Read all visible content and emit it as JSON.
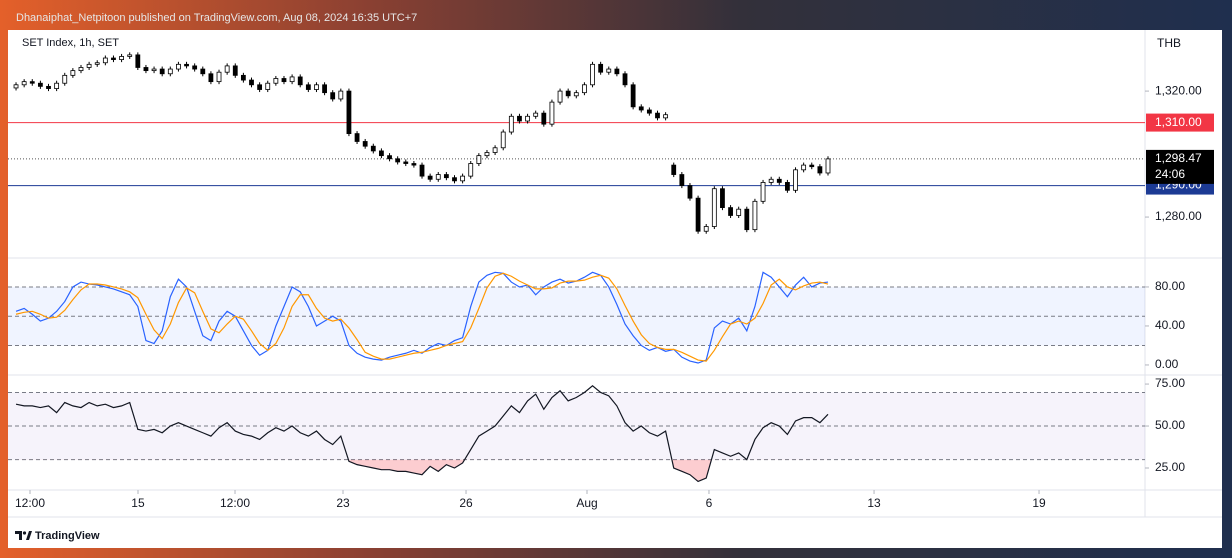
{
  "header": "Dhanaiphat_Netpitoon published on TradingView.com, Aug 08, 2024 16:35 UTC+7",
  "footer": "TradingView",
  "chart_data": [
    {
      "type": "candlestick",
      "title": "SET Index, 1h, SET",
      "currency": "THB",
      "x": [
        0,
        1,
        2,
        3,
        4,
        5,
        6,
        7,
        8,
        9,
        10,
        11,
        12,
        13,
        14,
        15,
        16,
        17,
        18,
        19,
        20,
        21,
        22,
        23,
        24,
        25,
        26,
        27,
        28,
        29,
        30,
        31,
        32,
        33,
        34,
        35,
        36,
        37,
        38,
        39,
        40,
        41,
        42,
        43,
        44,
        45,
        46,
        47,
        48,
        49,
        50,
        51,
        52,
        53,
        54,
        55,
        56,
        57,
        58,
        59,
        60,
        61,
        62,
        63,
        64,
        65,
        66,
        67,
        68,
        69,
        70,
        71,
        72,
        73,
        74,
        75,
        76,
        77,
        78,
        79,
        80,
        81,
        82,
        83,
        84,
        85,
        86,
        87,
        88,
        89,
        90,
        91,
        92,
        93,
        94,
        95,
        96,
        97,
        98,
        99,
        100
      ],
      "open": [
        1321,
        1322,
        1323,
        1322.5,
        1321.5,
        1320.8,
        1322.5,
        1325,
        1326.5,
        1327.5,
        1328.5,
        1329,
        1330.5,
        1330,
        1331,
        1331.5,
        1327.5,
        1326.5,
        1327,
        1325.5,
        1327,
        1328.5,
        1328,
        1327,
        1325.5,
        1323,
        1326,
        1328,
        1325,
        1323.5,
        1322,
        1320.5,
        1322.5,
        1324,
        1323,
        1324.5,
        1322,
        1320.5,
        1322,
        1319.5,
        1317.5,
        1320,
        1306.5,
        1304,
        1302.5,
        1301,
        1299.5,
        1298.5,
        1297.5,
        1297,
        1296.5,
        1293,
        1292,
        1293.5,
        1292.5,
        1291.5,
        1293,
        1297,
        1299.5,
        1300.5,
        1302,
        1307,
        1312,
        1310.5,
        1312,
        1313,
        1309.5,
        1316.5,
        1320,
        1318.5,
        1319.5,
        1322,
        1328.5,
        1326,
        1327,
        1325.5,
        1322,
        1315,
        1314,
        1313,
        1311.5,
        1296.5,
        1293.5,
        1290,
        1286,
        1275.5,
        1277,
        1289,
        1283,
        1280.5,
        1282.5,
        1276,
        1285,
        1291,
        1292,
        1291,
        1288.5,
        1295,
        1296.5,
        1296,
        1294
      ],
      "high": [
        1322.8,
        1323.8,
        1323.8,
        1323.3,
        1322.3,
        1323.3,
        1325.8,
        1327.3,
        1328.3,
        1329.3,
        1329.8,
        1331.3,
        1331.3,
        1331.8,
        1332.3,
        1332.3,
        1328.3,
        1327.8,
        1327.8,
        1327.8,
        1329.3,
        1329.3,
        1328.8,
        1327.8,
        1326.3,
        1326.8,
        1328.8,
        1328.8,
        1325.8,
        1324.3,
        1322.8,
        1323.3,
        1324.8,
        1324.8,
        1325.3,
        1325.3,
        1322.8,
        1322.8,
        1322.8,
        1320.3,
        1320.8,
        1320.8,
        1307.3,
        1304.8,
        1303.3,
        1301.8,
        1300.3,
        1299.3,
        1298.3,
        1297.8,
        1297.3,
        1293.8,
        1294.3,
        1294.3,
        1293.3,
        1293.8,
        1297.8,
        1300.3,
        1301.3,
        1302.8,
        1307.8,
        1312.8,
        1312.8,
        1312.8,
        1313.8,
        1313.8,
        1317.3,
        1320.8,
        1320.8,
        1320.3,
        1322.8,
        1329.3,
        1329.3,
        1327.8,
        1327.8,
        1326.3,
        1322.8,
        1315.8,
        1314.8,
        1313.8,
        1313.3,
        1297.3,
        1294.3,
        1290.8,
        1286.8,
        1277.8,
        1289.8,
        1289.8,
        1283.8,
        1283.3,
        1283.3,
        1285.8,
        1291.8,
        1292.8,
        1292.8,
        1291.8,
        1295.8,
        1297.3,
        1297.3,
        1296.8,
        1299.3
      ],
      "low": [
        1320.2,
        1321.2,
        1321.7,
        1320.7,
        1320,
        1320,
        1321.7,
        1324.2,
        1325.7,
        1326.7,
        1327.7,
        1328.2,
        1329.2,
        1329.2,
        1330.2,
        1326.7,
        1325.7,
        1325.7,
        1324.7,
        1324.7,
        1326.2,
        1327.2,
        1326.2,
        1324.7,
        1322.2,
        1322.2,
        1325.2,
        1324.2,
        1322.7,
        1321.2,
        1319.7,
        1319.7,
        1321.7,
        1322.2,
        1322.2,
        1321.2,
        1319.7,
        1319.7,
        1318.7,
        1316.7,
        1316.7,
        1305.7,
        1303.2,
        1301.7,
        1300.2,
        1298.7,
        1297.7,
        1296.7,
        1296.2,
        1295.7,
        1292.2,
        1291.2,
        1291.2,
        1291.7,
        1290.7,
        1290.7,
        1292.2,
        1296.2,
        1298.7,
        1299.7,
        1301.2,
        1306.2,
        1309.7,
        1309.7,
        1311.2,
        1308.7,
        1308.7,
        1315.7,
        1317.7,
        1317.7,
        1318.7,
        1321.2,
        1325.2,
        1325.2,
        1324.7,
        1321.2,
        1314.2,
        1313.2,
        1312.2,
        1310.7,
        1310.7,
        1292.7,
        1289.2,
        1285.2,
        1274.7,
        1274.7,
        1276.2,
        1282.2,
        1279.7,
        1279.7,
        1275.2,
        1275.2,
        1284.2,
        1290.2,
        1290.2,
        1287.7,
        1287.7,
        1294.2,
        1295.2,
        1293.2,
        1293.2
      ],
      "close": [
        1322,
        1323,
        1322.5,
        1321.5,
        1320.8,
        1322.5,
        1325,
        1326.5,
        1327.5,
        1328.5,
        1329,
        1330.5,
        1330,
        1331,
        1331.5,
        1327.5,
        1326.5,
        1327,
        1325.5,
        1327,
        1328.5,
        1328,
        1327,
        1325.5,
        1323,
        1326,
        1328,
        1325,
        1323.5,
        1322,
        1320.5,
        1322.5,
        1324,
        1323,
        1324.5,
        1322,
        1320.5,
        1322,
        1319.5,
        1317.5,
        1320,
        1306.5,
        1304,
        1302.5,
        1301,
        1299.5,
        1298.5,
        1297.5,
        1297,
        1296.5,
        1293,
        1292,
        1293.5,
        1292.5,
        1291.5,
        1293,
        1297,
        1299.5,
        1300.5,
        1302,
        1307,
        1312,
        1310.5,
        1312,
        1313,
        1309.5,
        1316.5,
        1320,
        1318.5,
        1319.5,
        1322,
        1328.5,
        1326,
        1327,
        1325.5,
        1322,
        1315,
        1314,
        1313,
        1311.5,
        1312.5,
        1293.5,
        1290,
        1286,
        1275.5,
        1277,
        1289,
        1283,
        1280.5,
        1282.5,
        1276,
        1285,
        1291,
        1292,
        1291,
        1288.5,
        1295,
        1296.5,
        1296,
        1294,
        1298.47
      ],
      "up_color": "#ffffff",
      "down_color": "#000000",
      "border_color": "#000000",
      "xlim": [
        -0.25,
        139.04
      ],
      "xticks": [
        {
          "value": 1.72,
          "label": "12:00"
        },
        {
          "value": 15.02,
          "label": "15"
        },
        {
          "value": 26.97,
          "label": "12:00"
        },
        {
          "value": 40.27,
          "label": "23"
        },
        {
          "value": 55.42,
          "label": "26"
        },
        {
          "value": 70.32,
          "label": "Aug"
        },
        {
          "value": 85.34,
          "label": "6"
        },
        {
          "value": 105.67,
          "label": "13"
        },
        {
          "value": 125.99,
          "label": "19"
        }
      ],
      "ylim": [
        1267,
        1339.4
      ],
      "yticks": [
        {
          "value": 1280,
          "label": "1,280.00"
        },
        {
          "value": 1320,
          "label": "1,320.00"
        }
      ],
      "grid": false,
      "hlines": [
        {
          "value": 1310,
          "label": "1,310.00",
          "color": "#f23645"
        },
        {
          "value": 1290,
          "label": "1,290.00",
          "color": "#1c3a94"
        }
      ],
      "last_price": {
        "value": 1298.47,
        "label": "1,298.47",
        "countdown": "24:06",
        "color": "#000000"
      }
    },
    {
      "type": "line",
      "x": [
        0,
        1,
        2,
        3,
        4,
        5,
        6,
        7,
        8,
        9,
        10,
        11,
        12,
        13,
        14,
        15,
        16,
        17,
        18,
        19,
        20,
        21,
        22,
        23,
        24,
        25,
        26,
        27,
        28,
        29,
        30,
        31,
        32,
        33,
        34,
        35,
        36,
        37,
        38,
        39,
        40,
        41,
        42,
        43,
        44,
        45,
        46,
        47,
        48,
        49,
        50,
        51,
        52,
        53,
        54,
        55,
        56,
        57,
        58,
        59,
        60,
        61,
        62,
        63,
        64,
        65,
        66,
        67,
        68,
        69,
        70,
        71,
        72,
        73,
        74,
        75,
        76,
        77,
        78,
        79,
        80,
        81,
        82,
        83,
        84,
        85,
        86,
        87,
        88,
        89,
        90,
        91,
        92,
        93,
        94,
        95,
        96,
        97,
        98,
        99,
        100
      ],
      "series": [
        {
          "color": "#2962ff",
          "values": [
            55,
            58,
            52,
            45,
            48,
            55,
            65,
            80,
            85,
            83,
            82,
            80,
            78,
            75,
            72,
            60,
            25,
            22,
            35,
            70,
            88,
            80,
            55,
            30,
            25,
            45,
            55,
            50,
            35,
            20,
            10,
            15,
            40,
            60,
            80,
            75,
            60,
            40,
            45,
            50,
            45,
            20,
            12,
            8,
            6,
            5,
            8,
            10,
            12,
            15,
            12,
            18,
            22,
            20,
            25,
            28,
            60,
            85,
            92,
            95,
            94,
            85,
            80,
            82,
            72,
            80,
            85,
            88,
            84,
            86,
            90,
            95,
            92,
            80,
            62,
            42,
            30,
            20,
            15,
            18,
            14,
            16,
            8,
            4,
            2,
            5,
            38,
            45,
            42,
            48,
            35,
            60,
            95,
            90,
            80,
            70,
            82,
            90,
            80,
            84,
            85
          ]
        },
        {
          "color": "#ff9800",
          "values": [
            52,
            54,
            55,
            52,
            48,
            49,
            56,
            67,
            77,
            83,
            83,
            82,
            80,
            78,
            75,
            69,
            52,
            36,
            27,
            42,
            64,
            79,
            74,
            55,
            37,
            33,
            42,
            50,
            47,
            35,
            22,
            15,
            22,
            38,
            60,
            72,
            72,
            58,
            48,
            45,
            47,
            38,
            26,
            13,
            9,
            6,
            6,
            8,
            10,
            12,
            13,
            15,
            17,
            20,
            22,
            24,
            38,
            58,
            79,
            91,
            94,
            91,
            86,
            82,
            78,
            78,
            79,
            84,
            86,
            86,
            87,
            90,
            92,
            89,
            78,
            61,
            45,
            31,
            22,
            18,
            16,
            16,
            13,
            9,
            5,
            4,
            15,
            29,
            42,
            45,
            42,
            48,
            63,
            82,
            88,
            80,
            77,
            81,
            84,
            85,
            83
          ]
        }
      ],
      "ylim": [
        -10.3,
        109.7
      ],
      "yticks": [
        {
          "value": 0,
          "label": "0.00"
        },
        {
          "value": 40,
          "label": "40.00"
        },
        {
          "value": 80,
          "label": "80.00"
        }
      ],
      "levels": [
        20,
        50,
        80
      ],
      "band_color": "#2962ff"
    },
    {
      "type": "line",
      "x": [
        0,
        1,
        2,
        3,
        4,
        5,
        6,
        7,
        8,
        9,
        10,
        11,
        12,
        13,
        14,
        15,
        16,
        17,
        18,
        19,
        20,
        21,
        22,
        23,
        24,
        25,
        26,
        27,
        28,
        29,
        30,
        31,
        32,
        33,
        34,
        35,
        36,
        37,
        38,
        39,
        40,
        41,
        42,
        43,
        44,
        45,
        46,
        47,
        48,
        49,
        50,
        51,
        52,
        53,
        54,
        55,
        56,
        57,
        58,
        59,
        60,
        61,
        62,
        63,
        64,
        65,
        66,
        67,
        68,
        69,
        70,
        71,
        72,
        73,
        74,
        75,
        76,
        77,
        78,
        79,
        80,
        81,
        82,
        83,
        84,
        85,
        86,
        87,
        88,
        89,
        90,
        91,
        92,
        93,
        94,
        95,
        96,
        97,
        98,
        99,
        100
      ],
      "series": [
        {
          "color": "#131722",
          "values": [
            63,
            62,
            62,
            61,
            62,
            58,
            64,
            62,
            61,
            64,
            62,
            63,
            61,
            62,
            64,
            48,
            47,
            48,
            46,
            50,
            52,
            50,
            48,
            46,
            44,
            49,
            52,
            47,
            45,
            44,
            42,
            46,
            49,
            47,
            50,
            46,
            44,
            47,
            42,
            39,
            44,
            29,
            27,
            26,
            25,
            24,
            24,
            23,
            23,
            22,
            21,
            26,
            23,
            27,
            25,
            28,
            36,
            44,
            47,
            50,
            56,
            62,
            58,
            65,
            69,
            60,
            67,
            71,
            65,
            67,
            70,
            74,
            70,
            68,
            62,
            52,
            47,
            50,
            46,
            44,
            47,
            25,
            23,
            21,
            17,
            19,
            36,
            34,
            32,
            34,
            30,
            42,
            49,
            52,
            50,
            45,
            53,
            55,
            55,
            52,
            57
          ]
        }
      ],
      "ylim": [
        11.9,
        80.4
      ],
      "yticks": [
        {
          "value": 25,
          "label": "25.00"
        },
        {
          "value": 50,
          "label": "50.00"
        },
        {
          "value": 75,
          "label": "75.00"
        }
      ],
      "levels": [
        30,
        50,
        70
      ],
      "band_color": "#7e57c2",
      "oversold_color": "#f23645"
    }
  ]
}
